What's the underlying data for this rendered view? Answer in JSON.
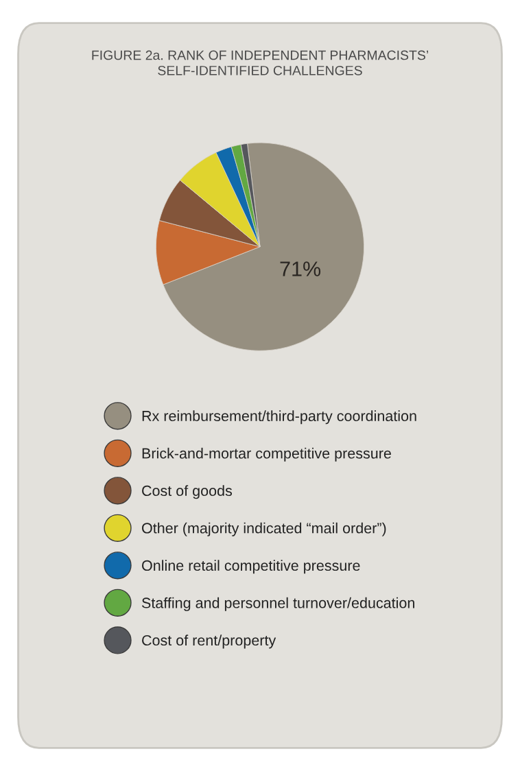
{
  "chart_data": {
    "type": "pie",
    "title": "FIGURE 2a. RANK OF INDEPENDENT PHARMACISTS’\nSELF-IDENTIFIED CHALLENGES",
    "categories": [
      "Rx reimbursement/third-party coordination",
      "Brick-and-mortar competitive pressure",
      "Cost of goods",
      "Other (majority indicated “mail order”)",
      "Online retail competitive pressure",
      "Staffing and personnel turnover/education",
      "Cost of rent/property"
    ],
    "values": [
      71,
      10,
      7,
      7,
      2.5,
      1.5,
      1
    ],
    "colors": [
      "#968f80",
      "#c86a33",
      "#83553a",
      "#e0d42e",
      "#116aab",
      "#62a842",
      "#55575c"
    ],
    "value_labels": [
      "71%",
      null,
      null,
      null,
      null,
      null,
      null
    ],
    "legend": "bottom"
  }
}
